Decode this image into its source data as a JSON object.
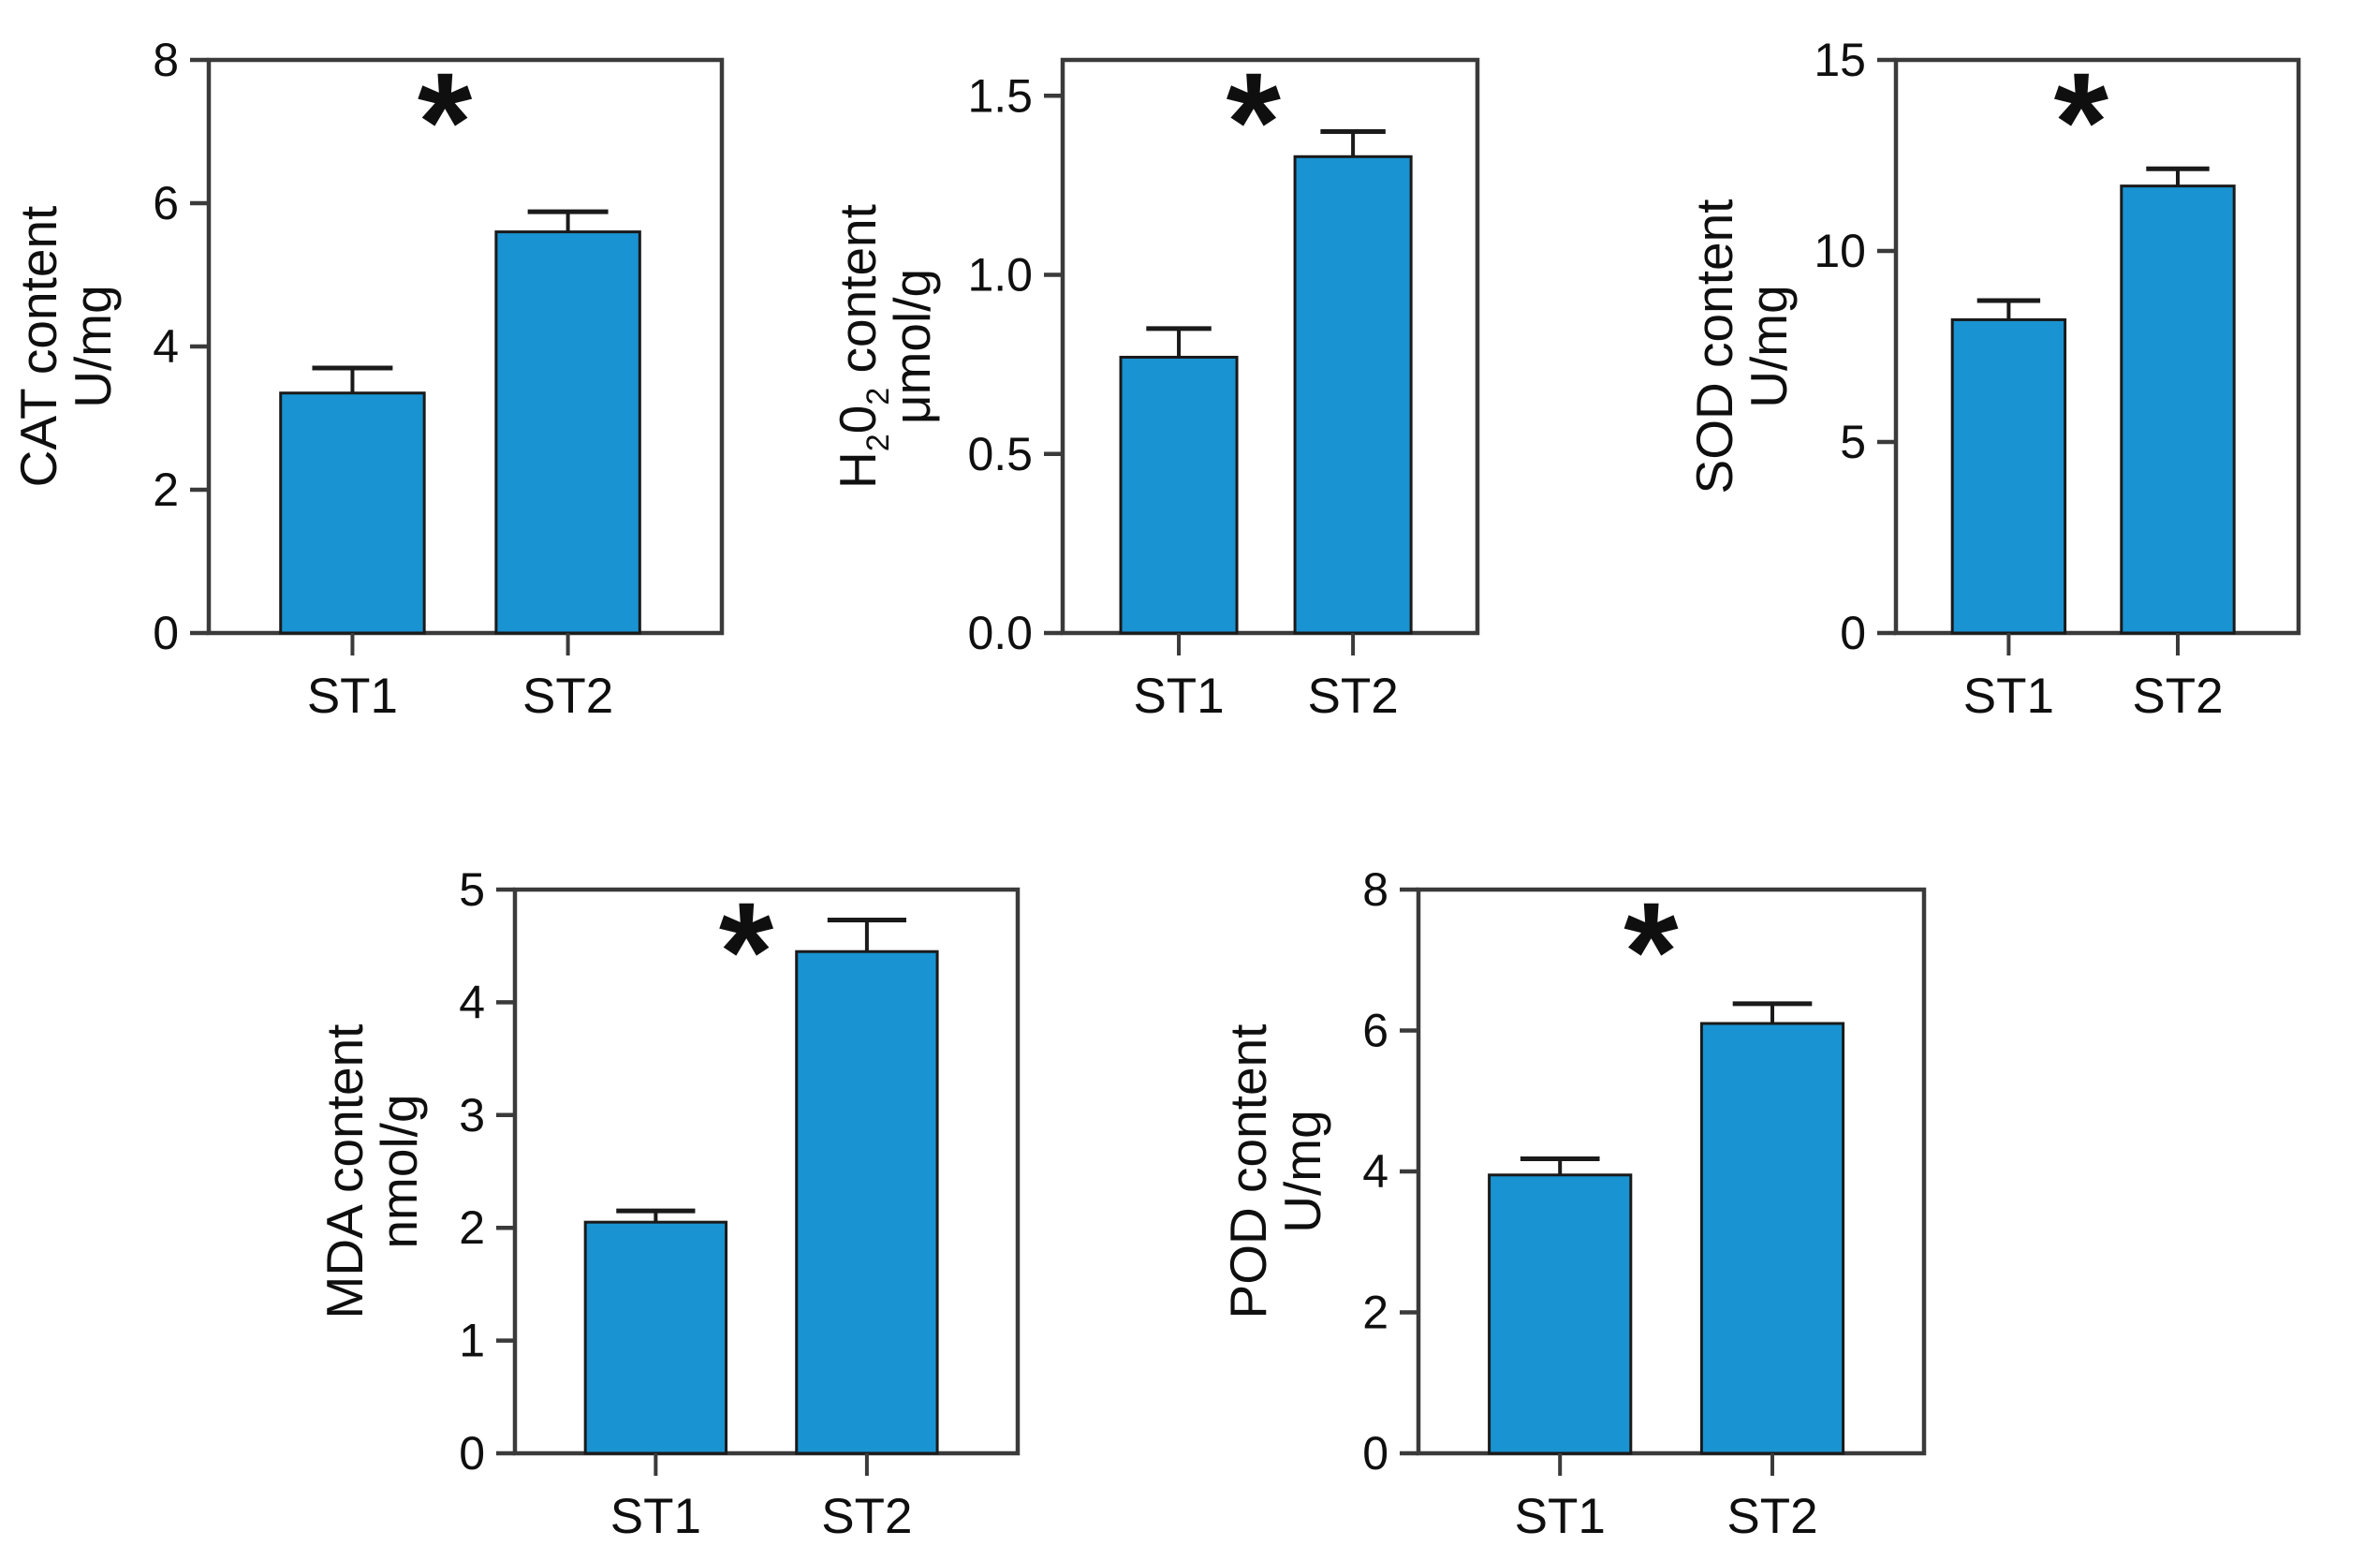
{
  "figure": {
    "background_color": "#ffffff",
    "bar_color": "#1993d1",
    "bar_edge_color": "#1a1a1a",
    "axis_color": "#3a3a3a",
    "text_color": "#0f0f0f",
    "significance_marker": "*"
  },
  "chart_data": [
    {
      "id": "cat",
      "type": "bar",
      "title": "",
      "ylabel": "CAT content U/mg",
      "ylabel_lines": [
        "CAT content",
        "U/mg"
      ],
      "xlabel": "",
      "categories": [
        "ST1",
        "ST2"
      ],
      "values": [
        3.35,
        5.6
      ],
      "errors": [
        0.35,
        0.28
      ],
      "ylim": [
        0,
        8
      ],
      "yticks": [
        "0",
        "2",
        "4",
        "6",
        "8"
      ],
      "grid": "off",
      "legend": "none",
      "significance": "*"
    },
    {
      "id": "h2o2",
      "type": "bar",
      "title": "",
      "ylabel": "H₂0₂ content μmol/g",
      "ylabel_lines": [
        "H₂0₂ content",
        "μmol/g"
      ],
      "xlabel": "",
      "categories": [
        "ST1",
        "ST2"
      ],
      "values": [
        0.77,
        1.33
      ],
      "errors": [
        0.08,
        0.07
      ],
      "ylim": [
        0,
        1.6
      ],
      "yticks": [
        "0.0",
        "0.5",
        "1.0",
        "1.5"
      ],
      "grid": "off",
      "legend": "none",
      "significance": "*"
    },
    {
      "id": "sod",
      "type": "bar",
      "title": "",
      "ylabel": "SOD content U/mg",
      "ylabel_lines": [
        "SOD content",
        "U/mg"
      ],
      "xlabel": "",
      "categories": [
        "ST1",
        "ST2"
      ],
      "values": [
        8.2,
        11.7
      ],
      "errors": [
        0.5,
        0.45
      ],
      "ylim": [
        0,
        15
      ],
      "yticks": [
        "0",
        "5",
        "10",
        "15"
      ],
      "grid": "off",
      "legend": "none",
      "significance": "*"
    },
    {
      "id": "mda",
      "type": "bar",
      "title": "",
      "ylabel": "MDA content nmol/g",
      "ylabel_lines": [
        "MDA content",
        "nmol/g"
      ],
      "xlabel": "",
      "categories": [
        "ST1",
        "ST2"
      ],
      "values": [
        2.05,
        4.45
      ],
      "errors": [
        0.1,
        0.28
      ],
      "ylim": [
        0,
        5
      ],
      "yticks": [
        "0",
        "1",
        "2",
        "3",
        "4",
        "5"
      ],
      "grid": "off",
      "legend": "none",
      "significance": "*"
    },
    {
      "id": "pod",
      "type": "bar",
      "title": "",
      "ylabel": "POD content U/mg",
      "ylabel_lines": [
        "POD content",
        "U/mg"
      ],
      "xlabel": "",
      "categories": [
        "ST1",
        "ST2"
      ],
      "values": [
        3.95,
        6.1
      ],
      "errors": [
        0.23,
        0.28
      ],
      "ylim": [
        0,
        8
      ],
      "yticks": [
        "0",
        "2",
        "4",
        "6",
        "8"
      ],
      "grid": "off",
      "legend": "none",
      "significance": "*"
    }
  ]
}
